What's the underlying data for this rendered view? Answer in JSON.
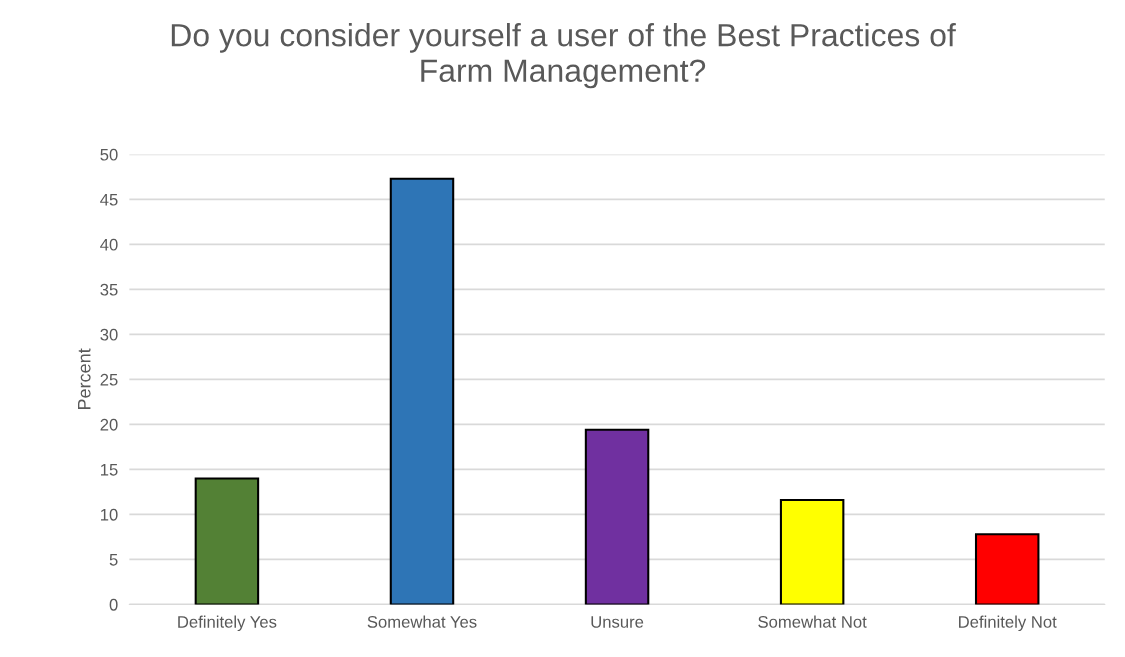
{
  "chart_data": {
    "type": "bar",
    "title": "Do you consider yourself a user of the Best Practices of\nFarm Management?",
    "ylabel": "Percent",
    "categories": [
      "Definitely Yes",
      "Somewhat Yes",
      "Unsure",
      "Somewhat Not",
      "Definitely Not"
    ],
    "values": [
      14.0,
      47.3,
      19.4,
      11.6,
      7.8
    ],
    "colors": [
      "#538135",
      "#2e75b6",
      "#7030a0",
      "#ffff00",
      "#ff0000"
    ],
    "ylim": [
      0,
      50
    ],
    "yticks": [
      0,
      5,
      10,
      15,
      20,
      25,
      30,
      35,
      40,
      45,
      50
    ],
    "grid": "y",
    "legend": false
  }
}
